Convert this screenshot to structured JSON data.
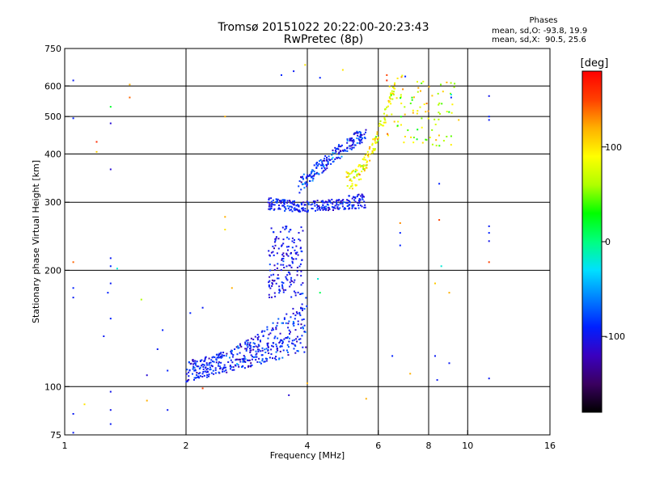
{
  "header": {
    "title_line1": "Tromsø 20151022 20:22:00-20:23:43",
    "title_line2": "RwPretec (8p)"
  },
  "phases_box": {
    "heading": "Phases",
    "line1": "mean, sd,O: -93.8, 19.9",
    "line2": "mean, sd,X:  90.5, 25.6"
  },
  "colorbar": {
    "label": "[deg]",
    "ticks": [
      {
        "value": 100,
        "label": "100"
      },
      {
        "value": 0,
        "label": "0"
      },
      {
        "value": -100,
        "label": "-100"
      }
    ],
    "range": [
      -180,
      180
    ],
    "colors": [
      "#000000",
      "#3a0060",
      "#3a00c0",
      "#0020ff",
      "#0080ff",
      "#00e0ff",
      "#00ff80",
      "#00ff00",
      "#b0ff00",
      "#ffff00",
      "#ffb000",
      "#ff4000",
      "#ff0000"
    ]
  },
  "chart_data": {
    "type": "scatter",
    "title": "Tromsø 20151022 20:22:00-20:23:43",
    "subtitle": "RwPretec (8p)",
    "xlabel": "Frequency [MHz]",
    "ylabel": "Stationary phase Virtual Height [km]",
    "xscale": "log",
    "yscale": "log",
    "xlim": [
      1,
      16
    ],
    "ylim": [
      75,
      750
    ],
    "xticks": [
      {
        "value": 1,
        "label": "1"
      },
      {
        "value": 2,
        "label": "2"
      },
      {
        "value": 4,
        "label": "4"
      },
      {
        "value": 6,
        "label": "6"
      },
      {
        "value": 8,
        "label": "8"
      },
      {
        "value": 10,
        "label": "10"
      },
      {
        "value": 16,
        "label": "16"
      }
    ],
    "yticks": [
      {
        "value": 75,
        "label": "75"
      },
      {
        "value": 100,
        "label": "100"
      },
      {
        "value": 200,
        "label": "200"
      },
      {
        "value": 300,
        "label": "300"
      },
      {
        "value": 400,
        "label": "400"
      },
      {
        "value": 500,
        "label": "500"
      },
      {
        "value": 600,
        "label": "600"
      },
      {
        "value": 750,
        "label": "750"
      }
    ],
    "grid_x": [
      2,
      4,
      6,
      8,
      10
    ],
    "grid_y": [
      100,
      200,
      300,
      400,
      500,
      600
    ],
    "colorscale": "phase [deg], -180 to 180",
    "points": [
      [
        1.05,
        620,
        -95
      ],
      [
        1.05,
        495,
        -90
      ],
      [
        1.05,
        210,
        140
      ],
      [
        1.05,
        180,
        -90
      ],
      [
        1.05,
        170,
        -95
      ],
      [
        1.05,
        85,
        -95
      ],
      [
        1.05,
        76,
        -95
      ],
      [
        1.12,
        90,
        100
      ],
      [
        1.3,
        530,
        20
      ],
      [
        1.3,
        480,
        -110
      ],
      [
        1.3,
        365,
        -110
      ],
      [
        1.3,
        215,
        -95
      ],
      [
        1.3,
        205,
        -90
      ],
      [
        1.3,
        185,
        -95
      ],
      [
        1.3,
        150,
        -90
      ],
      [
        1.3,
        97,
        -100
      ],
      [
        1.3,
        87,
        -100
      ],
      [
        1.3,
        80,
        -95
      ],
      [
        1.35,
        202,
        -20
      ],
      [
        1.28,
        175,
        -90
      ],
      [
        1.25,
        135,
        -95
      ],
      [
        1.45,
        605,
        120
      ],
      [
        1.45,
        560,
        140
      ],
      [
        1.2,
        430,
        160
      ],
      [
        1.2,
        405,
        110
      ],
      [
        1.55,
        168,
        60
      ],
      [
        1.6,
        92,
        120
      ],
      [
        1.7,
        125,
        -95
      ],
      [
        1.75,
        140,
        -90
      ],
      [
        1.8,
        87,
        -95
      ],
      [
        1.8,
        110,
        -90
      ],
      [
        1.6,
        107,
        -110
      ],
      [
        2.2,
        99,
        150
      ],
      [
        2.1,
        115,
        -100
      ],
      [
        2.2,
        108,
        -90
      ],
      [
        2.05,
        155,
        -90
      ],
      [
        2.2,
        160,
        -95
      ],
      [
        2.5,
        275,
        120
      ],
      [
        2.5,
        255,
        100
      ],
      [
        2.5,
        500,
        120
      ],
      [
        2.6,
        180,
        120
      ],
      [
        3.45,
        640,
        -90
      ],
      [
        3.7,
        655,
        -95
      ],
      [
        3.95,
        680,
        100
      ],
      [
        4.3,
        630,
        -90
      ],
      [
        4.9,
        660,
        100
      ],
      [
        6.3,
        640,
        150
      ],
      [
        6.3,
        620,
        160
      ],
      [
        7,
        635,
        -90
      ],
      [
        7.5,
        615,
        80
      ],
      [
        6.8,
        265,
        130
      ],
      [
        6.8,
        250,
        -90
      ],
      [
        6.8,
        232,
        -90
      ],
      [
        6.5,
        120,
        -90
      ],
      [
        7.2,
        108,
        120
      ],
      [
        8.5,
        335,
        -90
      ],
      [
        8.5,
        270,
        150
      ],
      [
        8.3,
        185,
        110
      ],
      [
        8.3,
        120,
        -95
      ],
      [
        8.4,
        104,
        -95
      ],
      [
        8.6,
        205,
        -20
      ],
      [
        9,
        175,
        120
      ],
      [
        9,
        115,
        -95
      ],
      [
        9.1,
        570,
        -20
      ],
      [
        9.1,
        560,
        -90
      ],
      [
        9.5,
        490,
        110
      ],
      [
        11.3,
        565,
        -100
      ],
      [
        11.3,
        500,
        -90
      ],
      [
        11.3,
        490,
        -95
      ],
      [
        11.3,
        260,
        -95
      ],
      [
        11.3,
        250,
        -90
      ],
      [
        11.3,
        238,
        -100
      ],
      [
        11.3,
        210,
        150
      ],
      [
        11.3,
        105,
        -95
      ],
      [
        5.6,
        93,
        120
      ],
      [
        4.25,
        190,
        -20
      ],
      [
        4.3,
        175,
        10
      ],
      [
        4.0,
        102,
        120
      ],
      [
        3.6,
        95,
        -110
      ]
    ],
    "clusters": [
      {
        "fmin": 2.0,
        "fmax": 4.0,
        "hmin": 100,
        "hmax": 170,
        "count": 420,
        "phase_mean": -95,
        "phase_sd": 25,
        "shape": "o_low"
      },
      {
        "fmin": 3.2,
        "fmax": 3.9,
        "hmin": 170,
        "hmax": 260,
        "count": 160,
        "phase_mean": -100,
        "phase_sd": 20,
        "shape": "uniform"
      },
      {
        "fmin": 3.2,
        "fmax": 5.6,
        "hmin": 280,
        "hmax": 315,
        "count": 260,
        "phase_mean": -95,
        "phase_sd": 20,
        "shape": "o_floor"
      },
      {
        "fmin": 3.8,
        "fmax": 5.6,
        "hmin": 315,
        "hmax": 480,
        "count": 200,
        "phase_mean": -90,
        "phase_sd": 30,
        "shape": "o_rise"
      },
      {
        "fmin": 5.0,
        "fmax": 6.6,
        "hmin": 320,
        "hmax": 620,
        "count": 140,
        "phase_mean": 90,
        "phase_sd": 30,
        "shape": "x_trace"
      },
      {
        "fmin": 6.2,
        "fmax": 9.4,
        "hmin": 420,
        "hmax": 640,
        "count": 90,
        "phase_mean": 80,
        "phase_sd": 45,
        "shape": "uniform"
      }
    ]
  }
}
